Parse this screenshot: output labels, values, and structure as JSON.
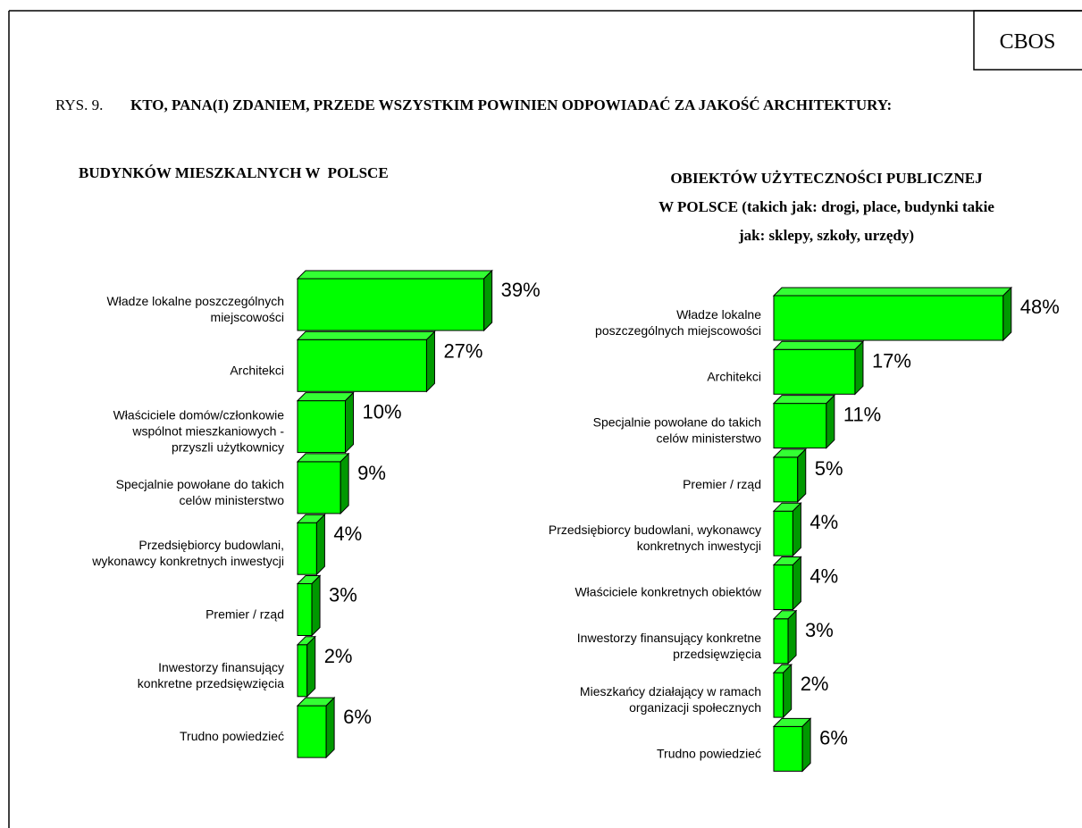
{
  "header": {
    "brand": "CBOS",
    "figure_label": "RYS. 9.",
    "title": "KTO, PANA(I) ZDANIEM, PRZEDE WSZYSTKIM POWINIEN ODPOWIADAĆ ZA JAKOŚĆ ARCHITEKTURY:"
  },
  "chart_data": [
    {
      "type": "bar3d",
      "title": "BUDYNKÓW MIESZKALNYCH W  POLSCE",
      "color": "#00ff00",
      "categories": [
        "Władze lokalne poszczególnych\nmiejscowości",
        "Architekci",
        "Właściciele domów/członkowie\nwspólnot mieszkaniowych -\nprzyszli użytkownicy",
        "Specjalnie powołane do takich\ncelów ministerstwo",
        "Przedsiębiorcy budowlani,\nwykonawcy konkretnych inwestycji",
        "Premier / rząd",
        "Inwestorzy finansujący\nkonkretne przedsięwzięcia",
        "Trudno powiedzieć"
      ],
      "values": [
        39,
        27,
        10,
        9,
        4,
        3,
        2,
        6
      ],
      "value_labels": [
        "39%",
        "27%",
        "10%",
        "9%",
        "4%",
        "3%",
        "2%",
        "6%"
      ]
    },
    {
      "type": "bar3d",
      "title": "OBIEKTÓW UŻYTECZNOŚCI PUBLICZNEJ\nW POLSCE (takich jak: drogi, place, budynki takie\njak: sklepy, szkoły, urzędy)",
      "color": "#00ff00",
      "categories": [
        "Władze lokalne\nposzczególnych  miejscowości",
        "Architekci",
        "Specjalnie powołane do takich\ncelów ministerstwo",
        "Premier / rząd",
        "Przedsiębiorcy budowlani, wykonawcy\nkonkretnych inwestycji",
        "Właściciele konkretnych obiektów",
        "Inwestorzy finansujący konkretne\nprzedsięwzięcia",
        "Mieszkańcy działający w ramach\norganizacji społecznych",
        "Trudno powiedzieć"
      ],
      "values": [
        48,
        17,
        11,
        5,
        4,
        4,
        3,
        2,
        6
      ],
      "value_labels": [
        "48%",
        "17%",
        "11%",
        "5%",
        "4%",
        "4%",
        "3%",
        "2%",
        "6%"
      ]
    }
  ]
}
